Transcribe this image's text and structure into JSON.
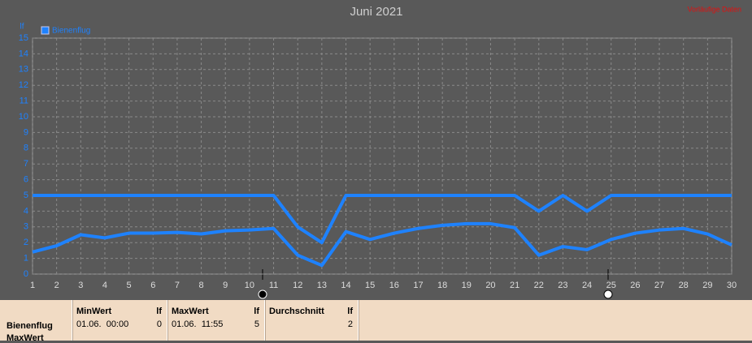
{
  "chart_data": {
    "type": "line",
    "title": "Juni 2021",
    "note": "Vorläufige Daten",
    "ylabel": "lf",
    "x": [
      1,
      2,
      3,
      4,
      5,
      6,
      7,
      8,
      9,
      10,
      11,
      12,
      13,
      14,
      15,
      16,
      17,
      18,
      19,
      20,
      21,
      22,
      23,
      24,
      25,
      26,
      27,
      28,
      29,
      30
    ],
    "series": [
      {
        "name": "Bienenflug",
        "color": "#1e82ff",
        "values": [
          1.4,
          1.8,
          2.5,
          2.3,
          2.6,
          2.6,
          2.65,
          2.55,
          2.75,
          2.8,
          2.9,
          1.2,
          0.55,
          2.7,
          2.2,
          2.6,
          2.9,
          3.1,
          3.2,
          3.2,
          2.95,
          1.2,
          1.75,
          1.55,
          2.2,
          2.6,
          2.8,
          2.9,
          2.55,
          1.85
        ]
      },
      {
        "color": "#1e82ff",
        "values": [
          5,
          5,
          5,
          5,
          5,
          5,
          5,
          5,
          5,
          5,
          5,
          3,
          2,
          5,
          5,
          5,
          5,
          5,
          5,
          5,
          5,
          4,
          5,
          4,
          5,
          5,
          5,
          5,
          5,
          5
        ]
      }
    ],
    "xlim": [
      1,
      30
    ],
    "xticks": [
      1,
      2,
      3,
      4,
      5,
      6,
      7,
      8,
      9,
      10,
      11,
      12,
      13,
      14,
      15,
      16,
      17,
      18,
      19,
      20,
      21,
      22,
      23,
      24,
      25,
      26,
      27,
      28,
      29,
      30
    ],
    "ylim": [
      0,
      15
    ],
    "yticks": [
      0,
      1,
      2,
      3,
      4,
      5,
      6,
      7,
      8,
      9,
      10,
      11,
      12,
      13,
      14,
      15
    ],
    "grid": true,
    "legend": "top-left"
  },
  "table": {
    "headers": [
      {
        "title": "MinWert",
        "unit": "lf"
      },
      {
        "title": "MaxWert",
        "unit": "lf"
      },
      {
        "title": "Durchschnitt",
        "unit": "lf"
      }
    ],
    "rows": [
      {
        "label": "Bienenflug",
        "cells": [
          {
            "time": "01.06.  00:00",
            "value": 0
          },
          {
            "time": "01.06.  11:55",
            "value": 5
          },
          {
            "value": 2
          }
        ]
      },
      {
        "label": "MaxWert"
      }
    ]
  }
}
